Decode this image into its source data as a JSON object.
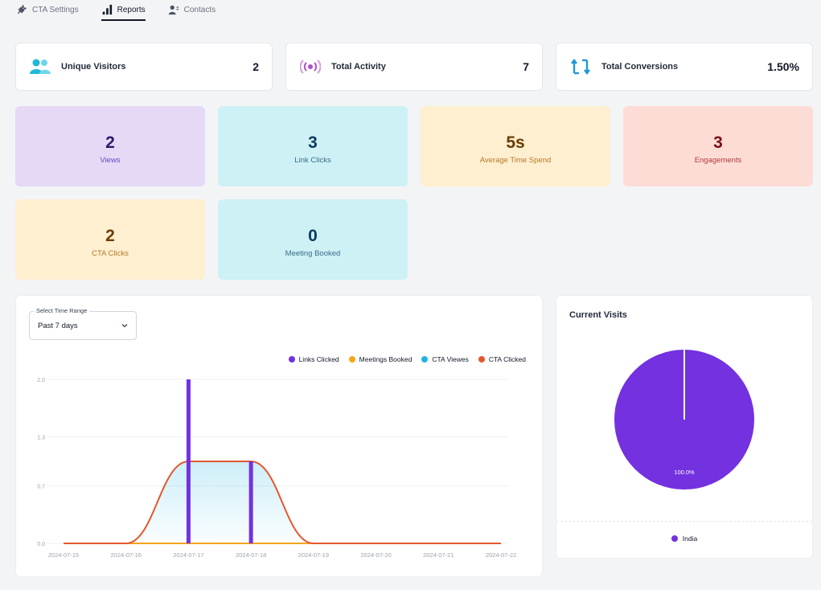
{
  "tabs": [
    {
      "label": "CTA Settings",
      "icon": "plug-icon",
      "active": false
    },
    {
      "label": "Reports",
      "icon": "bar-chart-icon",
      "active": true
    },
    {
      "label": "Contacts",
      "icon": "contacts-icon",
      "active": false
    }
  ],
  "stats": [
    {
      "label": "Unique Visitors",
      "value": "2",
      "icon": "users-icon",
      "color": "#22b8d6"
    },
    {
      "label": "Total Activity",
      "value": "7",
      "icon": "broadcast-icon",
      "color": "#b14fc6"
    },
    {
      "label": "Total Conversions",
      "value": "1.50%",
      "icon": "conversion-arrows-icon",
      "color": "#1e9ad6"
    }
  ],
  "tiles": [
    {
      "value": "2",
      "label": "Views",
      "bg": "#e5d9f6",
      "num_color": "#2a1a6b",
      "lbl_color": "#6b46c1"
    },
    {
      "value": "3",
      "label": "Link Clicks",
      "bg": "#cdf1f5",
      "num_color": "#0b3a5e",
      "lbl_color": "#3b6b8a"
    },
    {
      "value": "5s",
      "label": "Average Time Spend",
      "bg": "#fdefcf",
      "num_color": "#6b3d05",
      "lbl_color": "#b7792a"
    },
    {
      "value": "3",
      "label": "Engagements",
      "bg": "#fddcd6",
      "num_color": "#7a0f14",
      "lbl_color": "#b4393c"
    },
    {
      "value": "2",
      "label": "CTA Clicks",
      "bg": "#fdefcf",
      "num_color": "#6b3d05",
      "lbl_color": "#b7792a"
    },
    {
      "value": "0",
      "label": "Meeting Booked",
      "bg": "#cdf1f5",
      "num_color": "#0b3a5e",
      "lbl_color": "#3b6b8a"
    }
  ],
  "time_range": {
    "label": "Select Time Range",
    "value": "Past 7 days"
  },
  "visits": {
    "title": "Current Visits",
    "slice_label": "100.0%",
    "legend": "India",
    "color": "#7331e0"
  },
  "chart_data": {
    "type": "bar",
    "categories": [
      "2024-07-15",
      "2024-07-16",
      "2024-07-17",
      "2024-07-18",
      "2024-07-19",
      "2024-07-20",
      "2024-07-21",
      "2024-07-22"
    ],
    "y_ticks": [
      "0.0",
      "0.7",
      "1.3",
      "2.0"
    ],
    "ylim": [
      0,
      2
    ],
    "series": [
      {
        "name": "Links Clicked",
        "kind": "bar",
        "color": "#7331e0",
        "values": [
          0,
          0,
          2,
          1,
          0,
          0,
          0,
          0
        ]
      },
      {
        "name": "Meetings Booked",
        "kind": "line",
        "color": "#f5a51b",
        "values": [
          0,
          0,
          0,
          0,
          0,
          0,
          0,
          0
        ]
      },
      {
        "name": "CTA Viewes",
        "kind": "area",
        "color": "#1fb4e0",
        "values": [
          0,
          0,
          1,
          1,
          0,
          0,
          0,
          0
        ]
      },
      {
        "name": "CTA Clicked",
        "kind": "line",
        "color": "#e4572e",
        "values": [
          0,
          0,
          1,
          1,
          0,
          0,
          0,
          0
        ]
      }
    ]
  }
}
